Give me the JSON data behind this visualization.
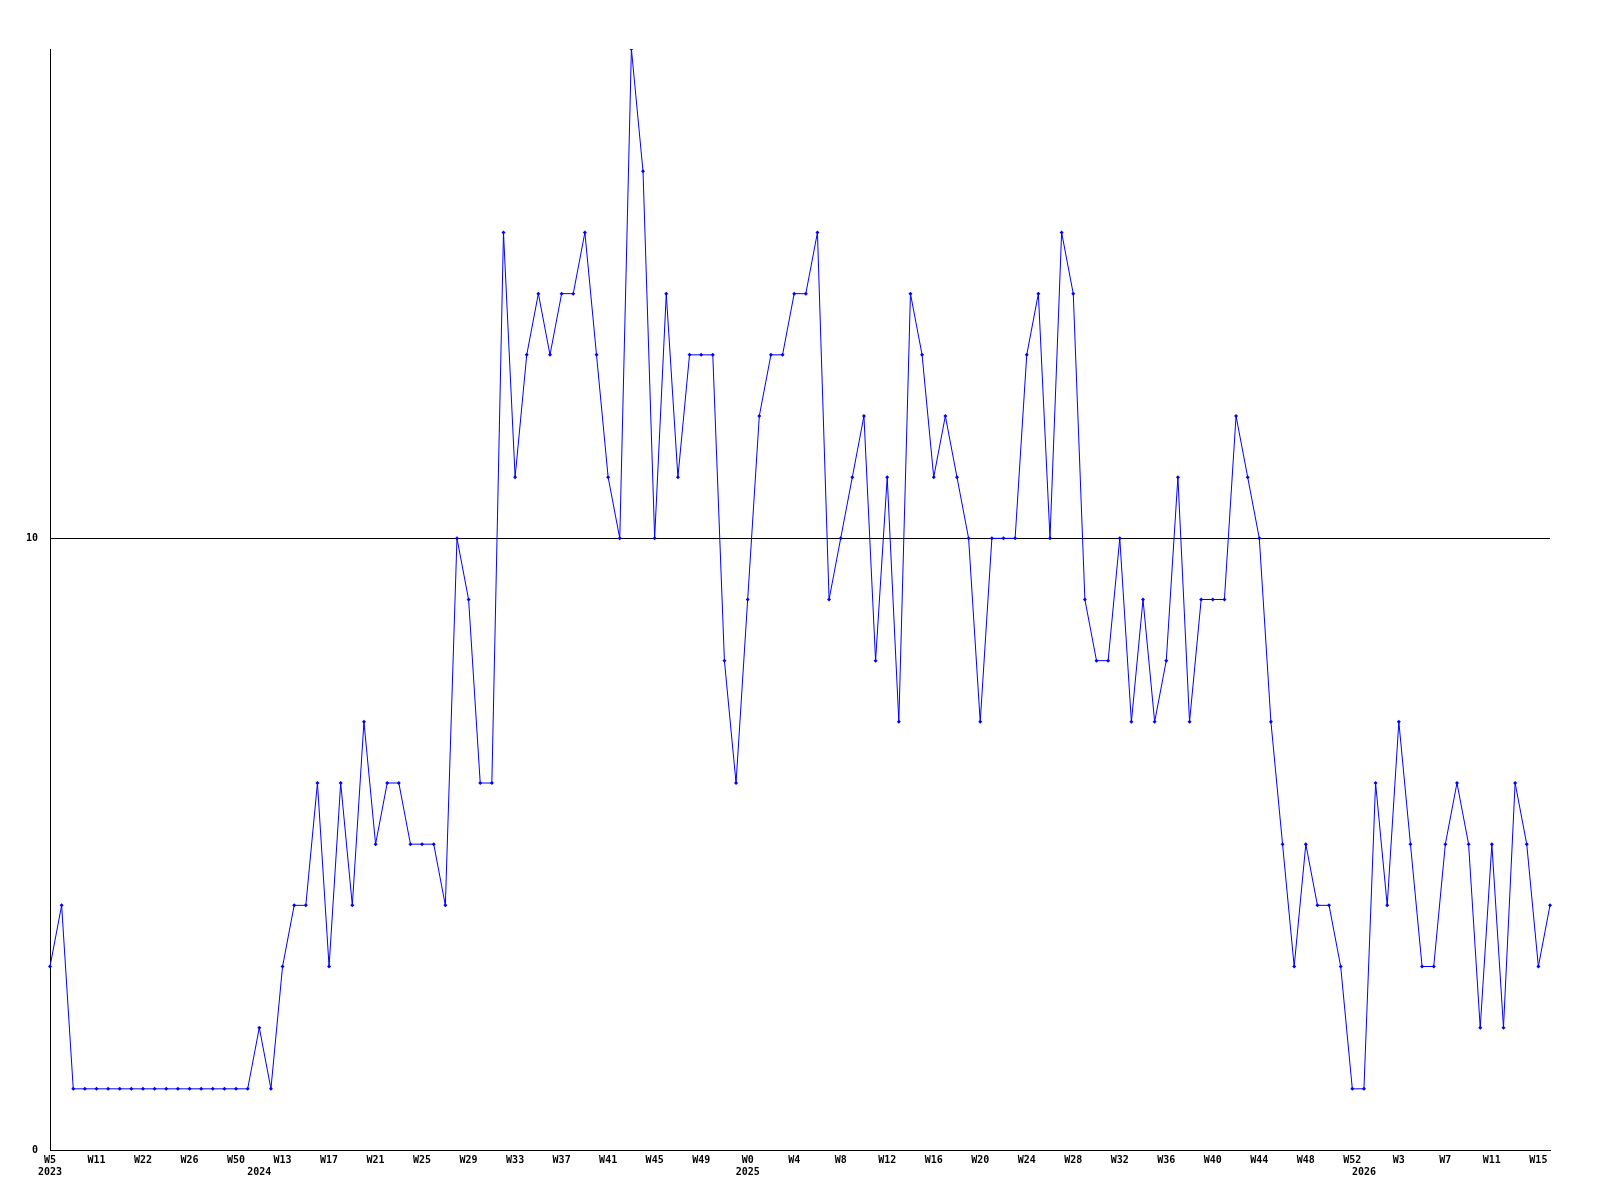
{
  "chart_data": {
    "type": "line",
    "categories": [
      "W5\n2023",
      null,
      null,
      null,
      "W11",
      null,
      null,
      null,
      "W22",
      null,
      null,
      null,
      "W26",
      null,
      null,
      null,
      "W50",
      null,
      "\n2024",
      null,
      "W13",
      null,
      null,
      null,
      "W17",
      null,
      null,
      null,
      "W21",
      null,
      null,
      null,
      "W25",
      null,
      null,
      null,
      "W29",
      null,
      null,
      null,
      "W33",
      null,
      null,
      null,
      "W37",
      null,
      null,
      null,
      "W41",
      null,
      null,
      null,
      "W45",
      null,
      null,
      null,
      "W49",
      null,
      null,
      null,
      "W0\n2025",
      null,
      null,
      null,
      "W4",
      null,
      null,
      null,
      "W8",
      null,
      null,
      null,
      "W12",
      null,
      null,
      null,
      "W16",
      null,
      null,
      null,
      "W20",
      null,
      null,
      null,
      "W24",
      null,
      null,
      null,
      "W28",
      null,
      null,
      null,
      "W32",
      null,
      null,
      null,
      "W36",
      null,
      null,
      null,
      "W40",
      null,
      null,
      null,
      "W44",
      null,
      null,
      null,
      "W48",
      null,
      null,
      null,
      "W52",
      "\n2026",
      null,
      null,
      "W3",
      null,
      null,
      null,
      "W7",
      null,
      null,
      null,
      "W11",
      null,
      null,
      null,
      "W15",
      null
    ],
    "series": [
      {
        "color": "#0000ff",
        "values": [
          3,
          4,
          1,
          1,
          1,
          1,
          1,
          1,
          1,
          1,
          1,
          1,
          1,
          1,
          1,
          1,
          1,
          1,
          2,
          1,
          3,
          4,
          4,
          6,
          3,
          6,
          4,
          7,
          5,
          6,
          6,
          5,
          5,
          5,
          4,
          10,
          9,
          6,
          6,
          15,
          11,
          13,
          14,
          13,
          14,
          14,
          15,
          13,
          11,
          10,
          18,
          16,
          10,
          14,
          11,
          13,
          13,
          13,
          8,
          6,
          9,
          12,
          13,
          13,
          14,
          14,
          15,
          9,
          10,
          11,
          12,
          8,
          11,
          7,
          14,
          13,
          11,
          12,
          11,
          10,
          7,
          10,
          10,
          10,
          13,
          14,
          10,
          15,
          14,
          9,
          8,
          8,
          10,
          7,
          9,
          7,
          8,
          11,
          7,
          9,
          9,
          9,
          12,
          11,
          10,
          7,
          5,
          3,
          5,
          4,
          4,
          3,
          1,
          1,
          6,
          4,
          7,
          5,
          3,
          3,
          5,
          6,
          5,
          2,
          5,
          2,
          6,
          5,
          3,
          4
        ]
      }
    ],
    "ylim": [
      0,
      18
    ],
    "yticks": [
      0,
      10
    ],
    "grid": "y",
    "marker": "diamond",
    "line_style": "solid",
    "legend": false
  }
}
